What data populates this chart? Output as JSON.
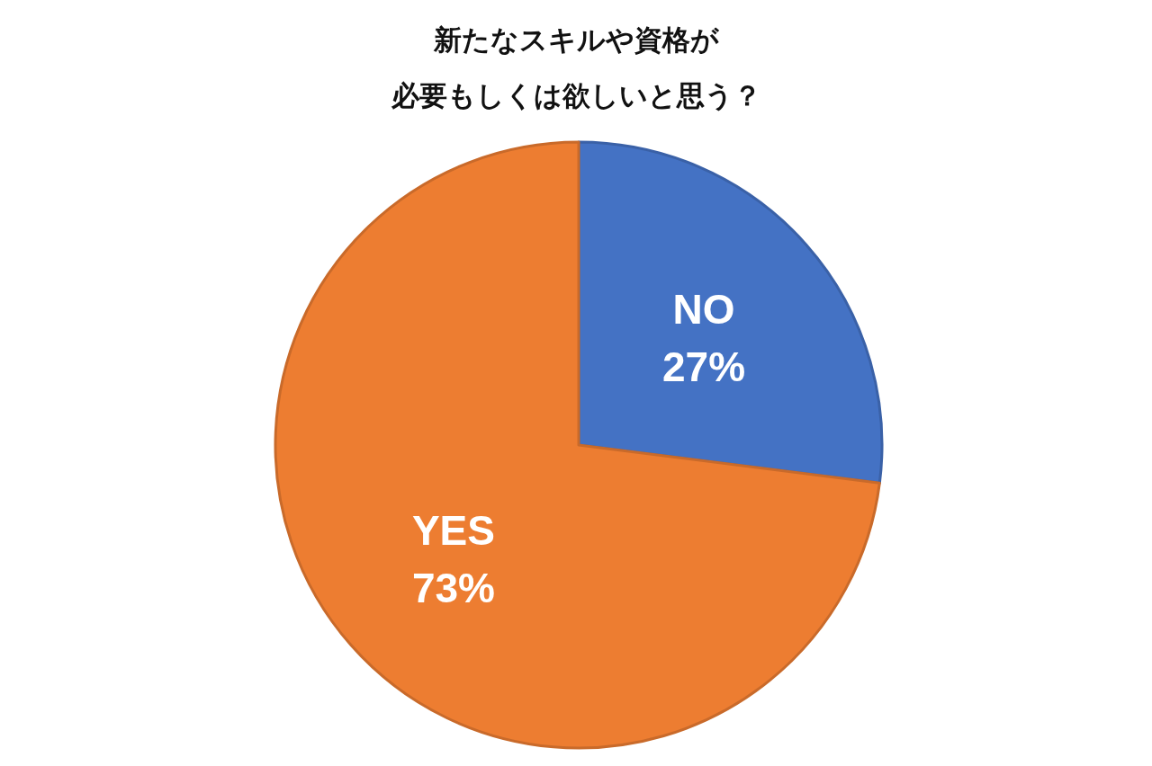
{
  "chart_data": {
    "type": "pie",
    "title": "新たなスキルや資格が",
    "subtitle": "必要もしくは欲しいと思う？",
    "categories": [
      "NO",
      "YES"
    ],
    "values": [
      27,
      73
    ],
    "value_labels": [
      "27%",
      "73%"
    ],
    "colors": [
      "#4472c4",
      "#ed7d31"
    ]
  }
}
